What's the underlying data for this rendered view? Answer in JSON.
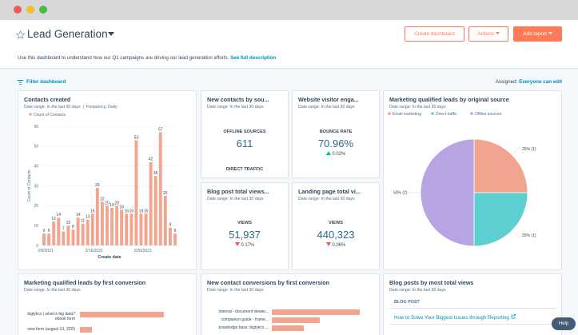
{
  "header": {
    "title": "Lead Generation",
    "buttons": [
      "Create dashboard",
      "Actions",
      "Add report"
    ],
    "description": "Use this dashboard to understand how our Q1 campaigns are driving our lead generation efforts.",
    "description_link": "See full description"
  },
  "toolbar": {
    "filter": "Filter dashboard",
    "assigned_label": "Assigned:",
    "assigned_value": "Everyone can edit"
  },
  "cards": {
    "contacts_created": {
      "title": "Contacts created",
      "date_range": "Date range: In the last 30 days",
      "frequency": "Frequency: Daily",
      "chart": {
        "type": "bar",
        "series_name": "Count of Contacts",
        "color": "#f2a58e",
        "categories": [
          "2/6/2021",
          null,
          null,
          null,
          null,
          null,
          null,
          null,
          null,
          null,
          "2/16/2021",
          null,
          null,
          null,
          null,
          null,
          null,
          null,
          null,
          null,
          "2/26/2021",
          null,
          null,
          null,
          null,
          null,
          null,
          null
        ],
        "values": [
          6,
          6,
          12,
          14,
          7,
          10,
          8,
          14,
          11,
          13,
          16,
          29,
          22,
          20,
          19,
          20,
          18,
          16,
          16,
          53,
          16,
          16,
          42,
          35,
          57,
          25,
          9,
          6
        ],
        "ylim": [
          0,
          60
        ],
        "yticks": [
          0,
          10,
          20,
          30,
          40,
          50,
          60
        ],
        "y_label": "Count of Contacts",
        "x_label": "Create date",
        "grid": true
      }
    },
    "new_contacts": {
      "title": "New contacts by sou...",
      "date_range": "Date range: In the last 30 days",
      "metric_label": "OFFLINE SOURCES",
      "metric_value": "611",
      "footer": "DIRECT TRAFFIC"
    },
    "website_engagement": {
      "title": "Website visitor enga...",
      "date_range": "Date range: In the last 30 days",
      "metric_label": "BOUNCE RATE",
      "metric_value": "70.96%",
      "change": "0.02%",
      "direction": "up"
    },
    "blog_views": {
      "title": "Blog post total views...",
      "date_range": "Date range: In the last 30 days",
      "metric_label": "VIEWS",
      "metric_value": "51,937",
      "change": "0.17%",
      "direction": "down"
    },
    "landing_views": {
      "title": "Landing page total vi...",
      "date_range": "Date range: In the last 30 days",
      "metric_label": "VIEWS",
      "metric_value": "440,323",
      "change": "0.06%",
      "direction": "down"
    },
    "mql_source": {
      "title": "Marketing qualified leads by original source",
      "date_range": "Date range: In the last 30 days",
      "chart": {
        "type": "pie",
        "categories": [
          "Email marketing",
          "Direct traffic",
          "Offline sources"
        ],
        "values": [
          25,
          25,
          50
        ],
        "value_labels": [
          "25% (1)",
          "25% (1)",
          "50% (2)"
        ],
        "colors": [
          "#f2a58e",
          "#5ccfd0",
          "#b8a3e3"
        ]
      }
    },
    "mql_conversion": {
      "title": "Marketing qualified leads by first conversion",
      "date_range": "Date range: In the last 30 days",
      "chart": {
        "type": "hbar",
        "color": "#f2a58e",
        "categories": [
          "bigtykcs | what is big data? ebook form",
          "new form (august 13, 2020"
        ],
        "values": [
          7,
          1
        ]
      }
    },
    "contact_conversions": {
      "title": "New contact conversions by first conversion",
      "date_range": "Date range: In the last 30 days",
      "chart": {
        "type": "hbar",
        "color": "#f2a58e",
        "categories": [
          "internal - document viewer...",
          "companion guide - frame...",
          "knowledge base: bigtykcs ..."
        ],
        "values": [
          11,
          6,
          4
        ]
      }
    },
    "blog_posts": {
      "title": "Blog posts by most total views",
      "date_range": "Date range: In the last 30 days",
      "column": "BLOG POST",
      "rows": [
        "How to Solve Your Biggest Issues through Reporting"
      ]
    }
  },
  "help": "Help"
}
